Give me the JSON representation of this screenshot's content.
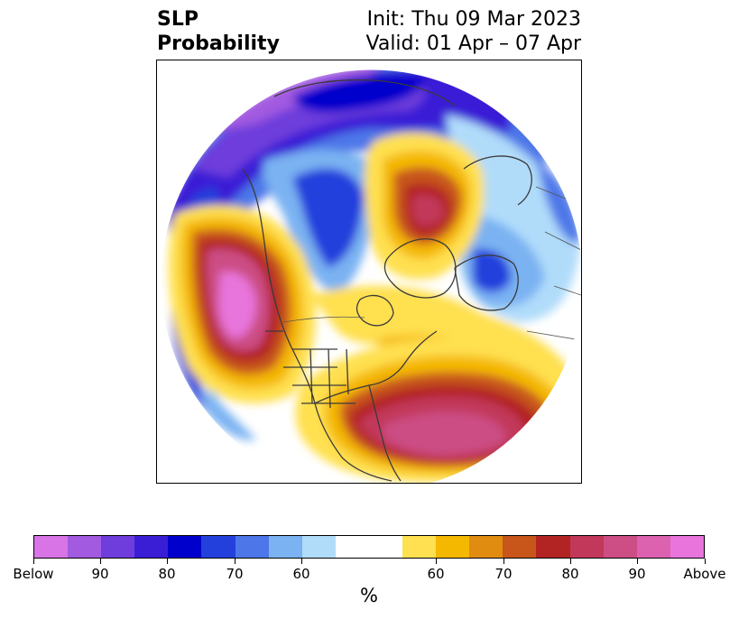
{
  "title": {
    "line1": "SLP",
    "line2": "Probability"
  },
  "init": "Init: Thu 09 Mar 2023",
  "valid": "Valid: 01 Apr – 07 Apr",
  "colorbar": {
    "bins": [
      {
        "color": "#d874e6"
      },
      {
        "color": "#a25ae0"
      },
      {
        "color": "#6e3ddb"
      },
      {
        "color": "#3a1ed6"
      },
      {
        "color": "#0000cc"
      },
      {
        "color": "#2440dc"
      },
      {
        "color": "#4d77e8"
      },
      {
        "color": "#7ab2f2"
      },
      {
        "color": "#b0dcfa"
      },
      {
        "color": "#ffffff",
        "wide": true
      },
      {
        "color": "#ffe050"
      },
      {
        "color": "#f4b800"
      },
      {
        "color": "#e08c10"
      },
      {
        "color": "#c8561a"
      },
      {
        "color": "#b22424"
      },
      {
        "color": "#c2385a"
      },
      {
        "color": "#cc4e84"
      },
      {
        "color": "#dc62b0"
      },
      {
        "color": "#e874dc"
      }
    ],
    "tick_labels": [
      "Below",
      "90",
      "80",
      "70",
      "60",
      "60",
      "70",
      "80",
      "90",
      "Above"
    ],
    "units": "%"
  },
  "map": {
    "projection": "north-polar-stereographic",
    "features": [
      "coastlines",
      "country-borders",
      "us-state-borders"
    ],
    "anomalies": [
      {
        "region": "northeast-pacific",
        "sign": "above",
        "max_percent": "Above"
      },
      {
        "region": "eastern-us-western-atlantic",
        "sign": "above",
        "max_percent": "Above"
      },
      {
        "region": "arctic-barents",
        "sign": "above",
        "max_percent": 80
      },
      {
        "region": "north-pacific-aleutians",
        "sign": "below",
        "max_percent": "Below"
      },
      {
        "region": "northern-siberia",
        "sign": "below",
        "max_percent": 90
      },
      {
        "region": "western-greenland-baffin",
        "sign": "below",
        "max_percent": 80
      },
      {
        "region": "northwest-europe",
        "sign": "below",
        "max_percent": 80
      }
    ]
  }
}
